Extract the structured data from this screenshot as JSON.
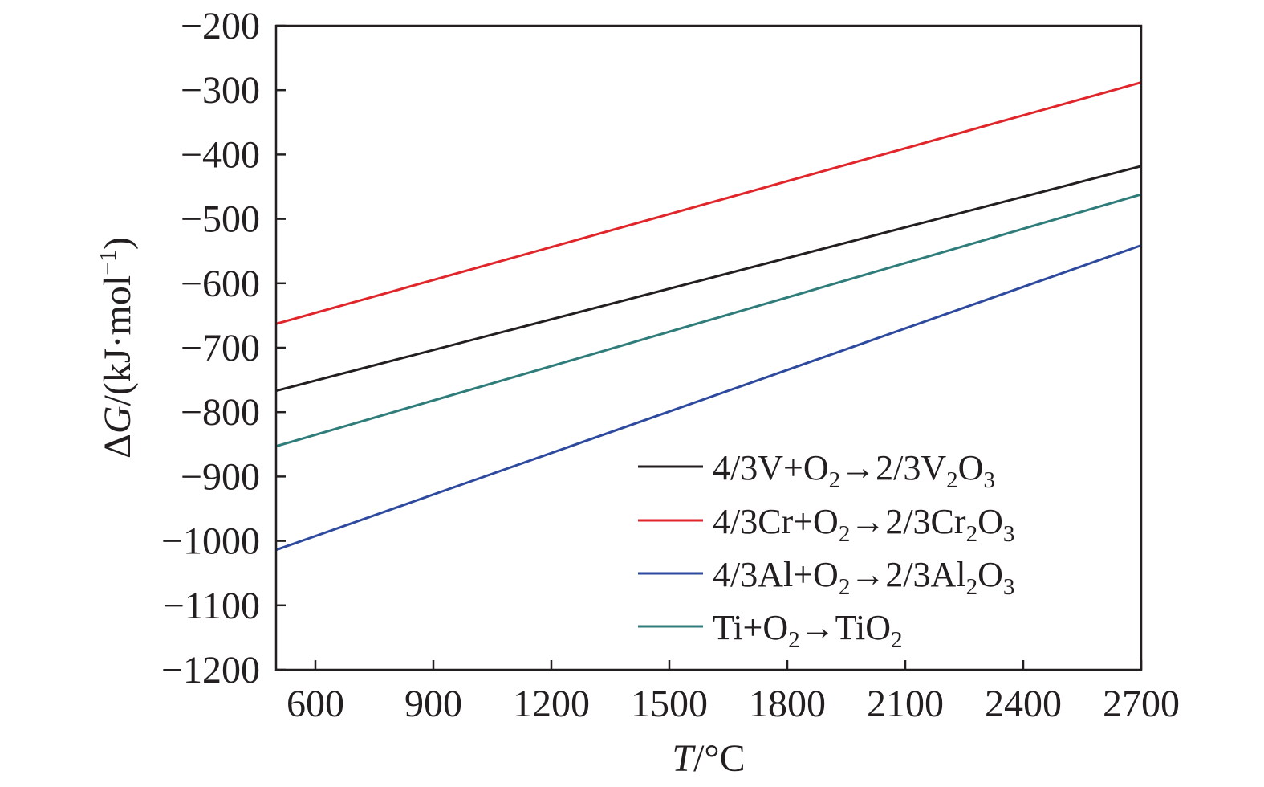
{
  "chart_data": {
    "type": "line",
    "xlabel_parts": [
      {
        "text": "T",
        "italic": true
      },
      {
        "text": "/°C",
        "italic": false
      }
    ],
    "ylabel_parts": [
      {
        "text": "Δ",
        "italic": false
      },
      {
        "text": "G",
        "italic": true
      },
      {
        "text": "/(kJ·mol",
        "italic": false
      },
      {
        "text": "−1",
        "italic": false,
        "sup": true
      },
      {
        "text": ")",
        "italic": false
      }
    ],
    "xlim": [
      500,
      2700
    ],
    "ylim": [
      -1200,
      -200
    ],
    "xticks": [
      600,
      900,
      1200,
      1500,
      1800,
      2100,
      2400,
      2700
    ],
    "xtick_labels": [
      "600",
      "900",
      "1200",
      "1500",
      "1800",
      "2100",
      "2400",
      "2700"
    ],
    "yticks": [
      -200,
      -300,
      -400,
      -500,
      -600,
      -700,
      -800,
      -900,
      -1000,
      -1100,
      -1200
    ],
    "ytick_labels": [
      "−200",
      "−300",
      "−400",
      "−500",
      "−600",
      "−700",
      "−800",
      "−900",
      "−1000",
      "−1100",
      "−1200"
    ],
    "grid": false,
    "legend_position": "bottom-right",
    "series": [
      {
        "name": "4/3V+O2→2/3V2O3",
        "name_parts": [
          {
            "text": "4/3V+O"
          },
          {
            "text": "2",
            "sub": true
          },
          {
            "text": "→2/3V"
          },
          {
            "text": "2",
            "sub": true
          },
          {
            "text": "O"
          },
          {
            "text": "3",
            "sub": true
          }
        ],
        "color": "#231f20",
        "x": [
          500,
          2700
        ],
        "y": [
          -767,
          -418
        ]
      },
      {
        "name": "4/3Cr+O2→2/3Cr2O3",
        "name_parts": [
          {
            "text": "4/3Cr+O"
          },
          {
            "text": "2",
            "sub": true
          },
          {
            "text": "→2/3Cr"
          },
          {
            "text": "2",
            "sub": true
          },
          {
            "text": "O"
          },
          {
            "text": "3",
            "sub": true
          }
        ],
        "color": "#e0262b",
        "x": [
          500,
          2700
        ],
        "y": [
          -663,
          -288
        ]
      },
      {
        "name": "4/3Al+O2→2/3Al2O3",
        "name_parts": [
          {
            "text": "4/3Al+O"
          },
          {
            "text": "2",
            "sub": true
          },
          {
            "text": "→2/3Al"
          },
          {
            "text": "2",
            "sub": true
          },
          {
            "text": "O"
          },
          {
            "text": "3",
            "sub": true
          }
        ],
        "color": "#2e4a9e",
        "x": [
          500,
          2700
        ],
        "y": [
          -1014,
          -541
        ]
      },
      {
        "name": "Ti+O2→TiO2",
        "name_parts": [
          {
            "text": "Ti+O"
          },
          {
            "text": "2",
            "sub": true
          },
          {
            "text": "→TiO"
          },
          {
            "text": "2",
            "sub": true
          }
        ],
        "color": "#2f7d7a",
        "x": [
          500,
          2700
        ],
        "y": [
          -853,
          -462
        ]
      }
    ]
  }
}
